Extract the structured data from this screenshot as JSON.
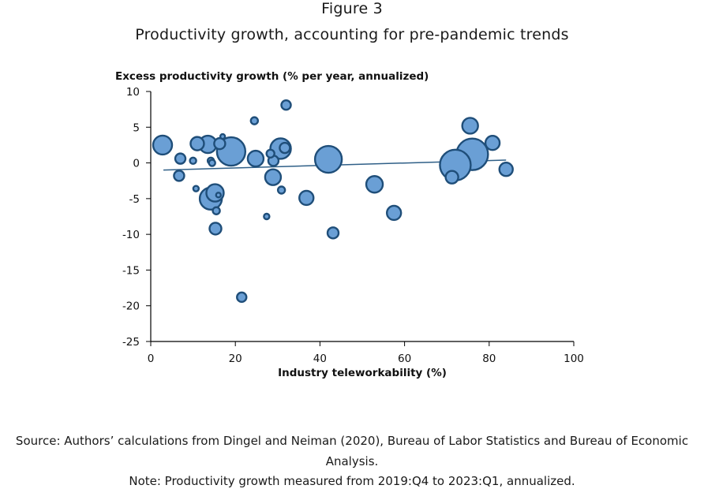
{
  "header": {
    "figure_label": "Figure 3",
    "title": "Productivity growth, accounting for pre-pandemic trends"
  },
  "footer": {
    "source": "Source: Authors’ calculations from Dingel and Neiman (2020), Bureau of Labor Statistics and Bureau of Economic Analysis.",
    "note": "Note: Productivity growth measured from 2019:Q4 to 2023:Q1, annualized."
  },
  "colors": {
    "bubble_fill": "#6a9fd5",
    "bubble_stroke": "#1f4e79",
    "trend_line": "#2f5f87",
    "axis": "#000000"
  },
  "chart_data": {
    "type": "scatter",
    "title": "",
    "xlabel": "Industry teleworkability (%)",
    "ylabel": "Excess productivity growth (% per year, annualized)",
    "xlim": [
      0,
      100
    ],
    "ylim": [
      -25,
      10
    ],
    "xticks": [
      "0",
      "20",
      "40",
      "60",
      "80",
      "100"
    ],
    "yticks": [
      "10",
      "5",
      "0",
      "-5",
      "-10",
      "-15",
      "-20",
      "-25"
    ],
    "grid": false,
    "legend": "none",
    "points": [
      {
        "x": 2.8,
        "y": 2.5,
        "size": 12
      },
      {
        "x": 7.0,
        "y": 0.6,
        "size": 6.5
      },
      {
        "x": 6.7,
        "y": -1.8,
        "size": 6.5
      },
      {
        "x": 10.0,
        "y": 0.3,
        "size": 4
      },
      {
        "x": 10.7,
        "y": -3.6,
        "size": 3.5
      },
      {
        "x": 11.0,
        "y": 2.7,
        "size": 8.5
      },
      {
        "x": 13.5,
        "y": 2.6,
        "size": 11
      },
      {
        "x": 14.2,
        "y": 0.3,
        "size": 4
      },
      {
        "x": 14.5,
        "y": 0.0,
        "size": 4
      },
      {
        "x": 14.2,
        "y": -5.0,
        "size": 14
      },
      {
        "x": 15.2,
        "y": -4.2,
        "size": 11
      },
      {
        "x": 15.5,
        "y": -6.7,
        "size": 4.5
      },
      {
        "x": 16.0,
        "y": -4.5,
        "size": 3
      },
      {
        "x": 15.3,
        "y": -9.2,
        "size": 7.5
      },
      {
        "x": 16.3,
        "y": 2.7,
        "size": 7
      },
      {
        "x": 17.0,
        "y": 3.7,
        "size": 3
      },
      {
        "x": 19.0,
        "y": 1.6,
        "size": 18
      },
      {
        "x": 21.5,
        "y": -18.8,
        "size": 6
      },
      {
        "x": 24.5,
        "y": 5.9,
        "size": 4.5
      },
      {
        "x": 24.8,
        "y": 0.6,
        "size": 10
      },
      {
        "x": 27.4,
        "y": -7.5,
        "size": 3.5
      },
      {
        "x": 28.3,
        "y": 1.3,
        "size": 5
      },
      {
        "x": 29.0,
        "y": 0.3,
        "size": 6.5
      },
      {
        "x": 28.9,
        "y": -2.0,
        "size": 10
      },
      {
        "x": 30.7,
        "y": 2.0,
        "size": 13
      },
      {
        "x": 31.7,
        "y": 2.1,
        "size": 6.5
      },
      {
        "x": 30.9,
        "y": -3.8,
        "size": 4.5
      },
      {
        "x": 32.0,
        "y": 8.1,
        "size": 6
      },
      {
        "x": 36.8,
        "y": -4.9,
        "size": 9
      },
      {
        "x": 42.0,
        "y": 0.5,
        "size": 17
      },
      {
        "x": 43.1,
        "y": -9.8,
        "size": 7
      },
      {
        "x": 52.9,
        "y": -3.0,
        "size": 10.5
      },
      {
        "x": 57.5,
        "y": -7.0,
        "size": 9
      },
      {
        "x": 71.2,
        "y": -2.0,
        "size": 8
      },
      {
        "x": 72.0,
        "y": -0.3,
        "size": 19.5
      },
      {
        "x": 75.5,
        "y": 5.2,
        "size": 10
      },
      {
        "x": 76.0,
        "y": 1.2,
        "size": 20
      },
      {
        "x": 80.8,
        "y": 2.8,
        "size": 9
      },
      {
        "x": 84.0,
        "y": -0.9,
        "size": 8.5
      }
    ],
    "trend_line": {
      "x": [
        3,
        84
      ],
      "y": [
        -1.0,
        0.4
      ]
    }
  }
}
